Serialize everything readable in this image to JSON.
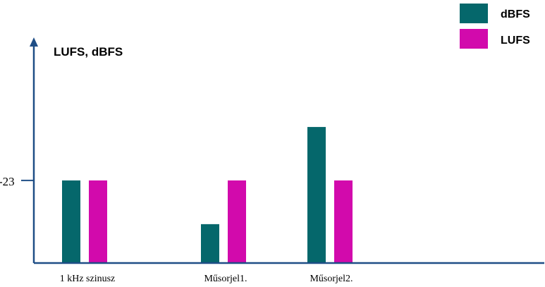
{
  "chart_data": {
    "type": "bar",
    "ylabel": "LUFS, dBFS",
    "categories": [
      "1 kHz szinusz",
      "Műsorjel1.",
      "Műsorjel2."
    ],
    "yticks": [
      {
        "value": -23,
        "label": "-23"
      }
    ],
    "ylim": [
      -40,
      0
    ],
    "series": [
      {
        "name": "dBFS",
        "color": "#05676b",
        "values": [
          -23,
          -32,
          -12
        ]
      },
      {
        "name": "LUFS",
        "color": "#d20aac",
        "values": [
          -23,
          -23,
          -23
        ]
      }
    ],
    "legend": "top-right",
    "grid": false
  }
}
